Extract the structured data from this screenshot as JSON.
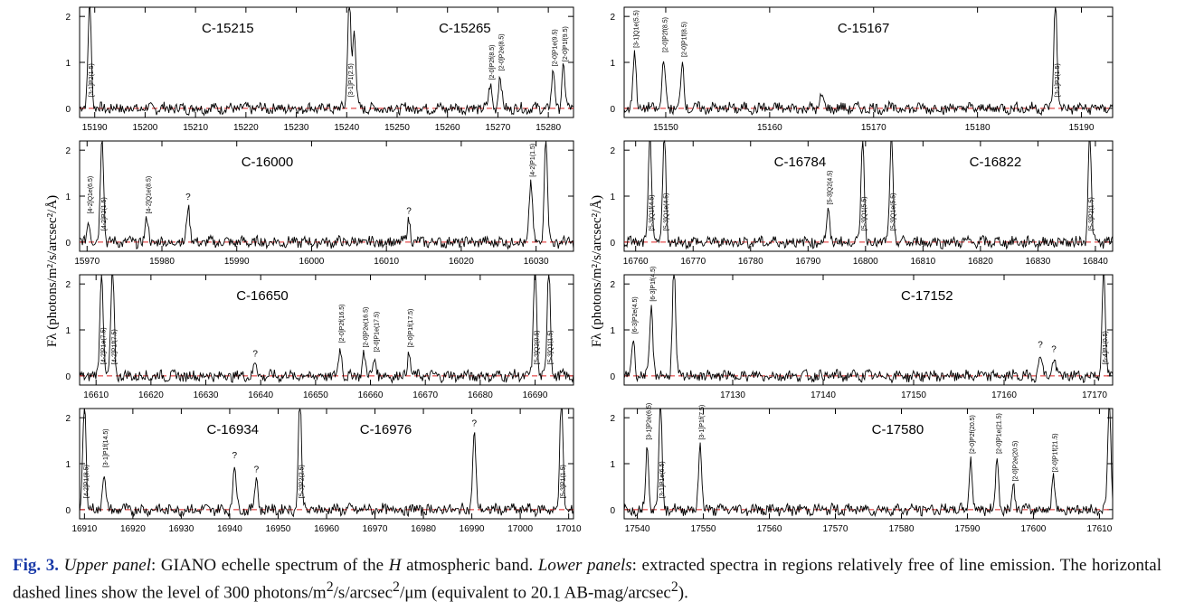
{
  "figure": {
    "y_axis_label": "Fλ (photons/m²/s/arcsec²/Å)",
    "y_ticks": [
      "0",
      "1",
      "2"
    ]
  },
  "caption": {
    "label": "Fig. 3.",
    "p1_label": "Upper panel",
    "p1_text": ": GIANO echelle spectrum of the ",
    "band": "H",
    "p2_text": " atmospheric band. ",
    "p2_label": "Lower panels",
    "p3_text": ": extracted spectra in regions relatively free of line emission. The horizontal dashed lines show the level of 300 photons/m",
    "sup1": "2",
    "p4_text": "/s/arcsec",
    "sup2": "2",
    "p5_text": "/μm (equivalent to 20.1 AB-mag/arcsec",
    "sup3": "2",
    "p6_text": ")."
  },
  "chart_data": [
    {
      "type": "line",
      "panel": "left-1",
      "xlim": [
        15187,
        15285
      ],
      "xticks": [
        15190,
        15200,
        15210,
        15220,
        15230,
        15240,
        15250,
        15260,
        15270,
        15280
      ],
      "ylim": [
        -0.2,
        2.2
      ],
      "yticks": [
        0,
        1,
        2
      ],
      "titles": [
        "C-15215",
        "C-15265"
      ],
      "reference_level": 0,
      "lines": [
        {
          "x": 15189,
          "h": 2.4,
          "label": "[3-1]P2(1.5)"
        },
        {
          "x": 15240.5,
          "h": 2.5,
          "label": "[3-1]P1(2.5)"
        },
        {
          "x": 15241.5,
          "h": 1.7,
          "label": ""
        },
        {
          "x": 15268.5,
          "h": 0.5,
          "label": "[2-0]P2f(8.5)"
        },
        {
          "x": 15270.4,
          "h": 0.7,
          "label": "[2-0]P2e(8.5)"
        },
        {
          "x": 15281,
          "h": 0.8,
          "label": "[2-0]P1e(9.5)"
        },
        {
          "x": 15283,
          "h": 0.9,
          "label": "[2-0]P1f(9.5)"
        }
      ]
    },
    {
      "type": "line",
      "panel": "left-2",
      "xlim": [
        15969,
        16035
      ],
      "xticks": [
        15970,
        15980,
        15990,
        16000,
        16010,
        16020,
        16030
      ],
      "ylim": [
        -0.2,
        2.2
      ],
      "yticks": [
        0,
        1,
        2
      ],
      "titles": [
        "C-16000"
      ],
      "reference_level": 0,
      "lines": [
        {
          "x": 15970.2,
          "h": 0.5,
          "label": "[4-2]Q1e(6.5)"
        },
        {
          "x": 15972,
          "h": 2.4,
          "label": "[4-2]P2(1.5)"
        },
        {
          "x": 15978,
          "h": 0.5,
          "label": "[4-2]Q1e(8.5)"
        },
        {
          "x": 15983.5,
          "h": 0.8,
          "label": "?"
        },
        {
          "x": 16013,
          "h": 0.5,
          "label": "?"
        },
        {
          "x": 16029.3,
          "h": 1.3,
          "label": "[4-2]P1(1.5)"
        },
        {
          "x": 16031.3,
          "h": 2.4,
          "label": ""
        }
      ]
    },
    {
      "type": "line",
      "panel": "left-3",
      "xlim": [
        16607,
        16697
      ],
      "xticks": [
        16610,
        16620,
        16630,
        16640,
        16650,
        16660,
        16670,
        16680,
        16690
      ],
      "ylim": [
        -0.2,
        2.2
      ],
      "yticks": [
        0,
        1,
        2
      ],
      "titles": [
        "C-16650"
      ],
      "reference_level": 0,
      "lines": [
        {
          "x": 16611,
          "h": 2.4,
          "label": "[4-2]P1e(7.5)"
        },
        {
          "x": 16613,
          "h": 2.4,
          "label": "[4-2]P1f(7.5)"
        },
        {
          "x": 16639,
          "h": 0.3,
          "label": "?"
        },
        {
          "x": 16654.5,
          "h": 0.6,
          "label": "[2-0]P2f(16.5)"
        },
        {
          "x": 16658.8,
          "h": 0.5,
          "label": "[2-0]P2e(16.5)"
        },
        {
          "x": 16660.8,
          "h": 0.4,
          "label": "[2-0]P1e(17.5)"
        },
        {
          "x": 16667,
          "h": 0.5,
          "label": "[2-0]P1f(17.5)"
        },
        {
          "x": 16690,
          "h": 2.4,
          "label": "[5-3]Q2(0.5)"
        },
        {
          "x": 16692.5,
          "h": 2.4,
          "label": "[5-3]Q1(1.5)"
        }
      ]
    },
    {
      "type": "line",
      "panel": "left-4",
      "xlim": [
        16909,
        17011
      ],
      "xticks": [
        16910,
        16920,
        16930,
        16940,
        16950,
        16960,
        16970,
        16980,
        16990,
        17000,
        17010
      ],
      "ylim": [
        -0.2,
        2.2
      ],
      "yticks": [
        0,
        1,
        2
      ],
      "titles": [
        "C-16934",
        "C-16976"
      ],
      "reference_level": 0,
      "lines": [
        {
          "x": 16910,
          "h": 2.4,
          "label": "[4-2]P1(8.5)"
        },
        {
          "x": 16914,
          "h": 0.8,
          "label": "[3-1]P1f(14.5)"
        },
        {
          "x": 16941,
          "h": 1.0,
          "label": "?"
        },
        {
          "x": 16945.5,
          "h": 0.7,
          "label": "?"
        },
        {
          "x": 16954.5,
          "h": 2.4,
          "label": "[5-3]P2(2.5)"
        },
        {
          "x": 16990.5,
          "h": 1.7,
          "label": "?"
        },
        {
          "x": 17008.5,
          "h": 2.4,
          "label": "[5-3]P1(1.5)"
        }
      ]
    },
    {
      "type": "line",
      "panel": "right-1",
      "xlim": [
        15146,
        15193
      ],
      "xticks": [
        15150,
        15160,
        15170,
        15180,
        15190
      ],
      "ylim": [
        -0.2,
        2.2
      ],
      "yticks": [
        0,
        1,
        2
      ],
      "titles": [
        "C-15167"
      ],
      "reference_level": 0,
      "lines": [
        {
          "x": 15147,
          "h": 1.2,
          "label": "[3-1]Q1e(5.5)"
        },
        {
          "x": 15149.8,
          "h": 1.1,
          "label": "[2-0]P2f(8.5)"
        },
        {
          "x": 15151.6,
          "h": 1.0,
          "label": "[2-0]P1f(8.5)"
        },
        {
          "x": 15165,
          "h": 0.3,
          "label": ""
        },
        {
          "x": 15187.5,
          "h": 2.4,
          "label": "[3-1]P2(1.5)"
        }
      ]
    },
    {
      "type": "line",
      "panel": "right-2",
      "xlim": [
        16758,
        16843
      ],
      "xticks": [
        16760,
        16770,
        16780,
        16790,
        16800,
        16810,
        16820,
        16830,
        16840
      ],
      "ylim": [
        -0.2,
        2.2
      ],
      "yticks": [
        0,
        1,
        2
      ],
      "titles": [
        "C-16784",
        "C-16822"
      ],
      "reference_level": 0,
      "lines": [
        {
          "x": 16762.5,
          "h": 2.4,
          "label": "[5-3]Q1f(4.5)"
        },
        {
          "x": 16765,
          "h": 2.4,
          "label": "[5-3]Q1e(4.5)"
        },
        {
          "x": 16793.5,
          "h": 0.7,
          "label": "[5-3]Q2(4.5)"
        },
        {
          "x": 16799.5,
          "h": 2.4,
          "label": "[5-3]Q1(5.5)"
        },
        {
          "x": 16804.5,
          "h": 2.4,
          "label": "[5-3]Q1e(5.5)"
        },
        {
          "x": 16839,
          "h": 2.4,
          "label": "[5-3]P2(1.5)"
        }
      ]
    },
    {
      "type": "line",
      "panel": "right-3",
      "xlim": [
        17118,
        17172
      ],
      "xticks": [
        17130,
        17140,
        17150,
        17160,
        17170
      ],
      "ylim": [
        -0.2,
        2.2
      ],
      "yticks": [
        0,
        1,
        2
      ],
      "titles": [
        "C-17152"
      ],
      "reference_level": 0,
      "lines": [
        {
          "x": 17119,
          "h": 0.8,
          "label": "[6-3]P2e(4.5)"
        },
        {
          "x": 17121,
          "h": 1.5,
          "label": "[6-3]P1f(4.5)"
        },
        {
          "x": 17123.5,
          "h": 2.4,
          "label": ""
        },
        {
          "x": 17164,
          "h": 0.5,
          "label": "?"
        },
        {
          "x": 17165.5,
          "h": 0.4,
          "label": "?"
        },
        {
          "x": 17171,
          "h": 2.4,
          "label": "[6-4]P1(0.5)"
        }
      ]
    },
    {
      "type": "line",
      "panel": "right-4",
      "xlim": [
        17538,
        17612
      ],
      "xticks": [
        17540,
        17550,
        17560,
        17570,
        17580,
        17590,
        17600,
        17610
      ],
      "ylim": [
        -0.2,
        2.2
      ],
      "yticks": [
        0,
        1,
        2
      ],
      "titles": [
        "C-17580"
      ],
      "reference_level": 0,
      "lines": [
        {
          "x": 17541.5,
          "h": 1.4,
          "label": "[3-1]P2e(6.5)"
        },
        {
          "x": 17543.5,
          "h": 2.4,
          "label": "[3-1]P1e(6.5)"
        },
        {
          "x": 17549.5,
          "h": 1.4,
          "label": "[3-1]P1f(7.5)"
        },
        {
          "x": 17590.5,
          "h": 1.1,
          "label": "[2-0]P2f(20.5)"
        },
        {
          "x": 17594.5,
          "h": 1.1,
          "label": "[2-0]P1e(21.5)"
        },
        {
          "x": 17597,
          "h": 0.5,
          "label": "[2-0]P2e(20.5)"
        },
        {
          "x": 17603,
          "h": 0.7,
          "label": "[2-0]P1f(21.5)"
        },
        {
          "x": 17611.5,
          "h": 2.4,
          "label": ""
        }
      ]
    }
  ]
}
